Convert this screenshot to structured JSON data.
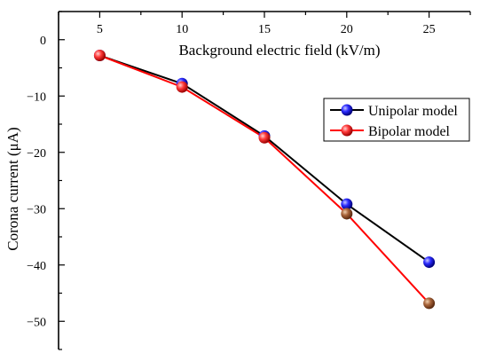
{
  "chart_data": {
    "type": "line",
    "title": "",
    "xlabel": "Background electric field (kV/m)",
    "ylabel": "Corona current (μA)",
    "x": [
      5,
      10,
      15,
      20,
      25
    ],
    "xticks": [
      5,
      10,
      15,
      20,
      25
    ],
    "yticks": [
      0,
      -10,
      -20,
      -30,
      -40,
      -50
    ],
    "xlim": [
      2.5,
      27.5
    ],
    "ylim": [
      -55,
      5
    ],
    "x_axis_position": "top",
    "grid": false,
    "legend_position": "right",
    "series": [
      {
        "name": "Unipolar model",
        "values": [
          -2.8,
          -7.8,
          -17.1,
          -29.2,
          -39.5
        ],
        "color": "#000000",
        "marker_color": "#0000ff"
      },
      {
        "name": "Bipolar model",
        "values": [
          -2.8,
          -8.4,
          -17.4,
          -30.9,
          -46.8
        ],
        "color": "#ff0000",
        "marker_color": "#ff0000"
      }
    ]
  }
}
